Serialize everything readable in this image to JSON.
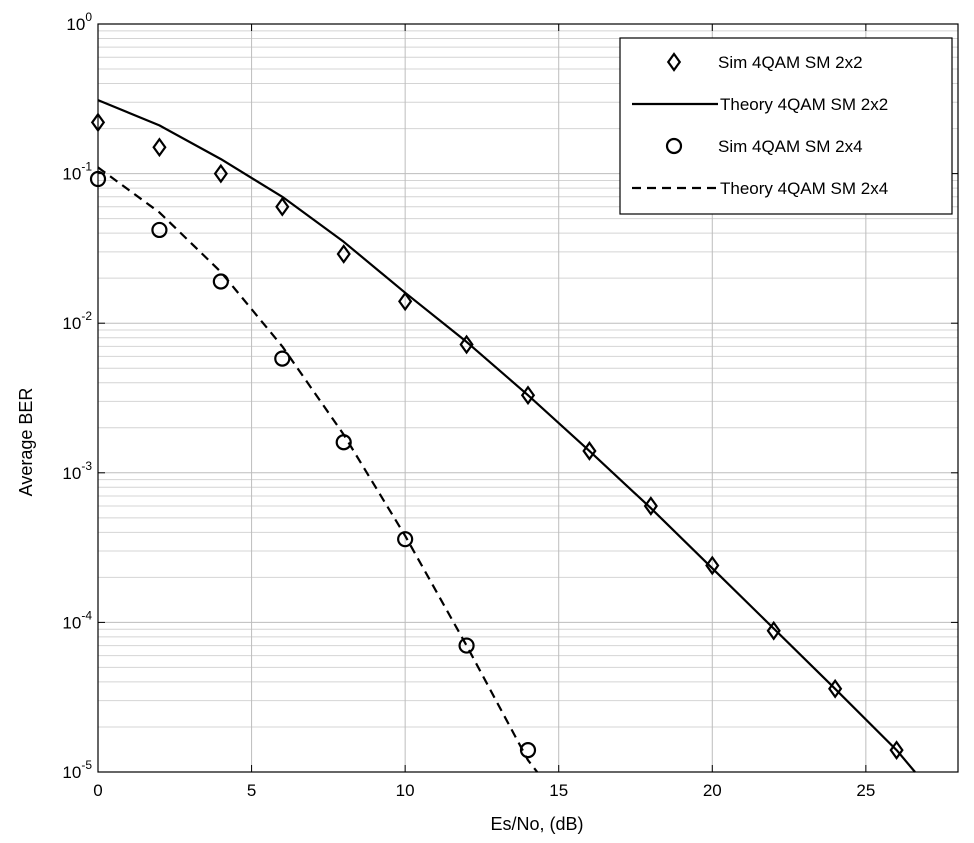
{
  "chart_data": {
    "type": "line",
    "title": "",
    "xlabel": "Es/No, (dB)",
    "ylabel": "Average BER",
    "xlim": [
      0,
      28
    ],
    "ylim": [
      1e-05,
      1
    ],
    "yscale": "log",
    "grid": true,
    "minor_grid": true,
    "legend_position": "top-right",
    "x_ticks": [
      0,
      5,
      10,
      15,
      20,
      25
    ],
    "x_tick_labels": [
      "0",
      "5",
      "10",
      "15",
      "20",
      "25"
    ],
    "y_ticks": [
      1,
      0.1,
      0.01,
      0.001,
      0.0001,
      1e-05
    ],
    "y_tick_labels": [
      {
        "base": "10",
        "exp": "0"
      },
      {
        "base": "10",
        "exp": "-1"
      },
      {
        "base": "10",
        "exp": "-2"
      },
      {
        "base": "10",
        "exp": "-3"
      },
      {
        "base": "10",
        "exp": "-4"
      },
      {
        "base": "10",
        "exp": "-5"
      }
    ],
    "series": [
      {
        "name": "Sim 4QAM SM 2x2",
        "style": "markers",
        "marker": "diamond",
        "color": "#000000",
        "x": [
          0,
          2,
          4,
          6,
          8,
          10,
          12,
          14,
          16,
          18,
          20,
          22,
          24,
          26
        ],
        "y": [
          0.22,
          0.15,
          0.1,
          0.06,
          0.029,
          0.014,
          0.0072,
          0.0033,
          0.0014,
          0.0006,
          0.00024,
          8.8e-05,
          3.6e-05,
          1.4e-05
        ]
      },
      {
        "name": "Theory 4QAM SM 2x2",
        "style": "solid",
        "color": "#000000",
        "x": [
          0,
          2,
          4,
          6,
          8,
          10,
          12,
          14,
          16,
          18,
          20,
          22,
          24,
          26,
          26.6
        ],
        "y": [
          0.31,
          0.21,
          0.125,
          0.07,
          0.035,
          0.016,
          0.0075,
          0.0033,
          0.0014,
          0.00058,
          0.00023,
          9.1e-05,
          3.6e-05,
          1.4e-05,
          1e-05
        ]
      },
      {
        "name": "Sim 4QAM SM 2x4",
        "style": "markers",
        "marker": "circle",
        "color": "#000000",
        "x": [
          0,
          2,
          4,
          6,
          8,
          10,
          12,
          14
        ],
        "y": [
          0.092,
          0.042,
          0.019,
          0.0058,
          0.0016,
          0.00036,
          7e-05,
          1.4e-05
        ]
      },
      {
        "name": "Theory 4QAM SM 2x4",
        "style": "dashed",
        "color": "#000000",
        "x": [
          0,
          2,
          4,
          6,
          8,
          10,
          12,
          14,
          14.3
        ],
        "y": [
          0.11,
          0.055,
          0.022,
          0.007,
          0.0018,
          0.00038,
          7e-05,
          1.2e-05,
          1e-05
        ]
      }
    ]
  }
}
